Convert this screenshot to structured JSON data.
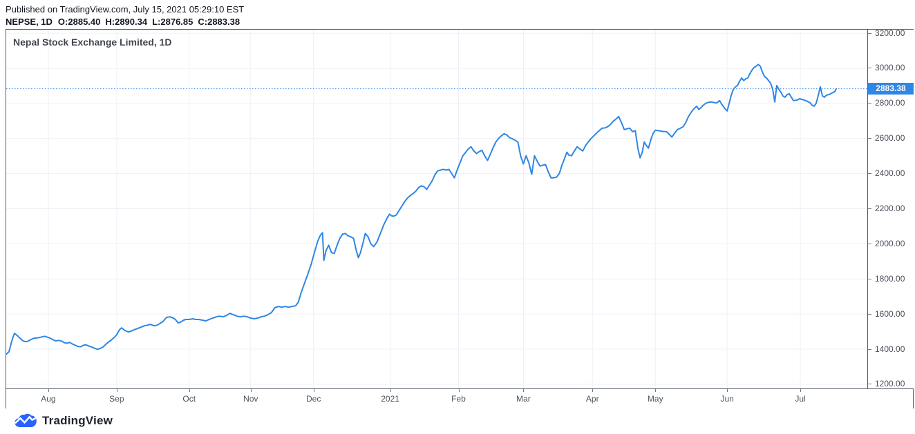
{
  "header": {
    "published_line": "Published on TradingView.com, July 15, 2021 05:29:10 EST",
    "symbol": "NEPSE, 1D",
    "ohlc": [
      {
        "label": "O:",
        "value": "2885.40"
      },
      {
        "label": "H:",
        "value": "2890.34"
      },
      {
        "label": "L:",
        "value": "2876.85"
      },
      {
        "label": "C:",
        "value": "2883.38"
      }
    ]
  },
  "chart": {
    "title": "Nepal Stock Exchange Limited, 1D",
    "last_price_label": "2883.38",
    "colors": {
      "line": "#2e86e5",
      "last_price_line": "#2e86e5",
      "badge_bg": "#2e86e5",
      "badge_text": "#ffffff",
      "grid": "#edf0f6",
      "border": "#555962",
      "axis_text": "#4a4e59",
      "logo_blue": "#2962ff"
    }
  },
  "chart_data": {
    "type": "line",
    "title": "Nepal Stock Exchange Limited, 1D",
    "symbol": "NEPSE",
    "timeframe": "1D",
    "legend_position": "none",
    "grid": true,
    "ylim": [
      1176,
      3220
    ],
    "last_price": 2883.38,
    "y_ticks": [
      {
        "label": "3200.00",
        "value": 3200
      },
      {
        "label": "3000.00",
        "value": 3000
      },
      {
        "label": "2800.00",
        "value": 2800
      },
      {
        "label": "2600.00",
        "value": 2600
      },
      {
        "label": "2400.00",
        "value": 2400
      },
      {
        "label": "2200.00",
        "value": 2200
      },
      {
        "label": "2000.00",
        "value": 2000
      },
      {
        "label": "1800.00",
        "value": 1800
      },
      {
        "label": "1600.00",
        "value": 1600
      },
      {
        "label": "1400.00",
        "value": 1400
      },
      {
        "label": "1200.00",
        "value": 1200
      }
    ],
    "x_ticks": [
      {
        "label": "Aug",
        "pos": 0.0489
      },
      {
        "label": "Sep",
        "pos": 0.1283
      },
      {
        "label": "Oct",
        "pos": 0.2125
      },
      {
        "label": "Nov",
        "pos": 0.2839
      },
      {
        "label": "Dec",
        "pos": 0.3569
      },
      {
        "label": "2021",
        "pos": 0.4459
      },
      {
        "label": "Feb",
        "pos": 0.5253
      },
      {
        "label": "Mar",
        "pos": 0.6007
      },
      {
        "label": "Apr",
        "pos": 0.6808
      },
      {
        "label": "May",
        "pos": 0.7538
      },
      {
        "label": "Jun",
        "pos": 0.8372
      },
      {
        "label": "Jul",
        "pos": 0.9222
      }
    ],
    "points": [
      [
        0.0,
        1371
      ],
      [
        0.0032,
        1385
      ],
      [
        0.0056,
        1431
      ],
      [
        0.008,
        1470
      ],
      [
        0.0096,
        1490
      ],
      [
        0.0128,
        1478
      ],
      [
        0.016,
        1462
      ],
      [
        0.0192,
        1448
      ],
      [
        0.0225,
        1442
      ],
      [
        0.0257,
        1446
      ],
      [
        0.0289,
        1455
      ],
      [
        0.0321,
        1462
      ],
      [
        0.0353,
        1464
      ],
      [
        0.0385,
        1466
      ],
      [
        0.0417,
        1470
      ],
      [
        0.0449,
        1473
      ],
      [
        0.0481,
        1468
      ],
      [
        0.0513,
        1462
      ],
      [
        0.0545,
        1453
      ],
      [
        0.0577,
        1447
      ],
      [
        0.0609,
        1450
      ],
      [
        0.0642,
        1446
      ],
      [
        0.0674,
        1437
      ],
      [
        0.0706,
        1434
      ],
      [
        0.0738,
        1438
      ],
      [
        0.077,
        1429
      ],
      [
        0.0802,
        1422
      ],
      [
        0.0834,
        1415
      ],
      [
        0.0866,
        1414
      ],
      [
        0.0898,
        1423
      ],
      [
        0.093,
        1424
      ],
      [
        0.0962,
        1417
      ],
      [
        0.0994,
        1412
      ],
      [
        0.1026,
        1405
      ],
      [
        0.1059,
        1399
      ],
      [
        0.1091,
        1404
      ],
      [
        0.1123,
        1412
      ],
      [
        0.1155,
        1426
      ],
      [
        0.1187,
        1440
      ],
      [
        0.1219,
        1452
      ],
      [
        0.1251,
        1465
      ],
      [
        0.1283,
        1482
      ],
      [
        0.1315,
        1510
      ],
      [
        0.1339,
        1521
      ],
      [
        0.1379,
        1506
      ],
      [
        0.1419,
        1498
      ],
      [
        0.1451,
        1503
      ],
      [
        0.1484,
        1510
      ],
      [
        0.1524,
        1517
      ],
      [
        0.1564,
        1525
      ],
      [
        0.1604,
        1533
      ],
      [
        0.1644,
        1537
      ],
      [
        0.1676,
        1541
      ],
      [
        0.1716,
        1533
      ],
      [
        0.1756,
        1537
      ],
      [
        0.178,
        1545
      ],
      [
        0.182,
        1557
      ],
      [
        0.1861,
        1581
      ],
      [
        0.1901,
        1584
      ],
      [
        0.1941,
        1577
      ],
      [
        0.1965,
        1569
      ],
      [
        0.1997,
        1549
      ],
      [
        0.2021,
        1553
      ],
      [
        0.2061,
        1565
      ],
      [
        0.2085,
        1569
      ],
      [
        0.2125,
        1569
      ],
      [
        0.2165,
        1573
      ],
      [
        0.2197,
        1569
      ],
      [
        0.2237,
        1569
      ],
      [
        0.2277,
        1565
      ],
      [
        0.2318,
        1561
      ],
      [
        0.2358,
        1569
      ],
      [
        0.2398,
        1577
      ],
      [
        0.2438,
        1584
      ],
      [
        0.2478,
        1588
      ],
      [
        0.2518,
        1584
      ],
      [
        0.2558,
        1592
      ],
      [
        0.2598,
        1604
      ],
      [
        0.2638,
        1596
      ],
      [
        0.2678,
        1588
      ],
      [
        0.2719,
        1584
      ],
      [
        0.2759,
        1588
      ],
      [
        0.2799,
        1584
      ],
      [
        0.2839,
        1577
      ],
      [
        0.2879,
        1573
      ],
      [
        0.2919,
        1577
      ],
      [
        0.2959,
        1584
      ],
      [
        0.2999,
        1588
      ],
      [
        0.3039,
        1596
      ],
      [
        0.3079,
        1608
      ],
      [
        0.312,
        1636
      ],
      [
        0.316,
        1643
      ],
      [
        0.32,
        1639
      ],
      [
        0.324,
        1643
      ],
      [
        0.328,
        1639
      ],
      [
        0.332,
        1643
      ],
      [
        0.336,
        1647
      ],
      [
        0.3392,
        1667
      ],
      [
        0.3424,
        1720
      ],
      [
        0.3464,
        1775
      ],
      [
        0.3505,
        1830
      ],
      [
        0.3545,
        1890
      ],
      [
        0.3585,
        1960
      ],
      [
        0.3617,
        2015
      ],
      [
        0.3649,
        2050
      ],
      [
        0.3673,
        2063
      ],
      [
        0.3689,
        1906
      ],
      [
        0.3713,
        1960
      ],
      [
        0.3745,
        1992
      ],
      [
        0.3777,
        1950
      ],
      [
        0.3809,
        1945
      ],
      [
        0.3841,
        1990
      ],
      [
        0.3873,
        2030
      ],
      [
        0.3906,
        2055
      ],
      [
        0.3938,
        2059
      ],
      [
        0.397,
        2045
      ],
      [
        0.4002,
        2040
      ],
      [
        0.4034,
        2031
      ],
      [
        0.4066,
        1960
      ],
      [
        0.409,
        1921
      ],
      [
        0.4114,
        1950
      ],
      [
        0.4146,
        2010
      ],
      [
        0.417,
        2059
      ],
      [
        0.4202,
        2040
      ],
      [
        0.4234,
        2000
      ],
      [
        0.4266,
        1984
      ],
      [
        0.4306,
        2010
      ],
      [
        0.4346,
        2060
      ],
      [
        0.4386,
        2110
      ],
      [
        0.4427,
        2150
      ],
      [
        0.4451,
        2169
      ],
      [
        0.4475,
        2160
      ],
      [
        0.4499,
        2157
      ],
      [
        0.4531,
        2165
      ],
      [
        0.4563,
        2190
      ],
      [
        0.4595,
        2215
      ],
      [
        0.4627,
        2240
      ],
      [
        0.4659,
        2260
      ],
      [
        0.4692,
        2275
      ],
      [
        0.4724,
        2286
      ],
      [
        0.4756,
        2300
      ],
      [
        0.4788,
        2320
      ],
      [
        0.482,
        2330
      ],
      [
        0.4852,
        2325
      ],
      [
        0.4884,
        2310
      ],
      [
        0.4916,
        2335
      ],
      [
        0.4948,
        2360
      ],
      [
        0.498,
        2395
      ],
      [
        0.5012,
        2416
      ],
      [
        0.5044,
        2420
      ],
      [
        0.5077,
        2424
      ],
      [
        0.5109,
        2420
      ],
      [
        0.5141,
        2424
      ],
      [
        0.5173,
        2400
      ],
      [
        0.5205,
        2376
      ],
      [
        0.5237,
        2420
      ],
      [
        0.5269,
        2460
      ],
      [
        0.5301,
        2500
      ],
      [
        0.5333,
        2520
      ],
      [
        0.5365,
        2540
      ],
      [
        0.5397,
        2553
      ],
      [
        0.5429,
        2530
      ],
      [
        0.5461,
        2514
      ],
      [
        0.5493,
        2525
      ],
      [
        0.5525,
        2533
      ],
      [
        0.5558,
        2500
      ],
      [
        0.559,
        2475
      ],
      [
        0.5622,
        2510
      ],
      [
        0.5654,
        2548
      ],
      [
        0.5686,
        2580
      ],
      [
        0.5718,
        2600
      ],
      [
        0.575,
        2615
      ],
      [
        0.5782,
        2627
      ],
      [
        0.5814,
        2620
      ],
      [
        0.5846,
        2605
      ],
      [
        0.5878,
        2598
      ],
      [
        0.591,
        2590
      ],
      [
        0.5942,
        2580
      ],
      [
        0.5974,
        2500
      ],
      [
        0.6006,
        2455
      ],
      [
        0.6038,
        2502
      ],
      [
        0.607,
        2460
      ],
      [
        0.6103,
        2396
      ],
      [
        0.6135,
        2502
      ],
      [
        0.6167,
        2470
      ],
      [
        0.6199,
        2443
      ],
      [
        0.6231,
        2448
      ],
      [
        0.6263,
        2451
      ],
      [
        0.6295,
        2410
      ],
      [
        0.6327,
        2376
      ],
      [
        0.6359,
        2376
      ],
      [
        0.6391,
        2380
      ],
      [
        0.6423,
        2400
      ],
      [
        0.6455,
        2450
      ],
      [
        0.6487,
        2490
      ],
      [
        0.6511,
        2522
      ],
      [
        0.6535,
        2505
      ],
      [
        0.6567,
        2502
      ],
      [
        0.6599,
        2530
      ],
      [
        0.6631,
        2553
      ],
      [
        0.6663,
        2540
      ],
      [
        0.6696,
        2529
      ],
      [
        0.6728,
        2560
      ],
      [
        0.676,
        2580
      ],
      [
        0.6792,
        2600
      ],
      [
        0.6824,
        2615
      ],
      [
        0.6856,
        2631
      ],
      [
        0.6888,
        2645
      ],
      [
        0.692,
        2659
      ],
      [
        0.6952,
        2660
      ],
      [
        0.6984,
        2667
      ],
      [
        0.7016,
        2680
      ],
      [
        0.7048,
        2698
      ],
      [
        0.708,
        2710
      ],
      [
        0.7112,
        2725
      ],
      [
        0.7145,
        2690
      ],
      [
        0.7177,
        2651
      ],
      [
        0.7209,
        2655
      ],
      [
        0.7241,
        2659
      ],
      [
        0.7273,
        2639
      ],
      [
        0.7305,
        2645
      ],
      [
        0.7337,
        2540
      ],
      [
        0.7361,
        2490
      ],
      [
        0.7385,
        2520
      ],
      [
        0.7409,
        2580
      ],
      [
        0.7433,
        2560
      ],
      [
        0.7458,
        2545
      ],
      [
        0.749,
        2600
      ],
      [
        0.7514,
        2630
      ],
      [
        0.7538,
        2647
      ],
      [
        0.757,
        2645
      ],
      [
        0.7602,
        2642
      ],
      [
        0.7634,
        2640
      ],
      [
        0.7666,
        2639
      ],
      [
        0.7698,
        2625
      ],
      [
        0.773,
        2608
      ],
      [
        0.7762,
        2630
      ],
      [
        0.7795,
        2651
      ],
      [
        0.7827,
        2658
      ],
      [
        0.7859,
        2666
      ],
      [
        0.7891,
        2690
      ],
      [
        0.7923,
        2725
      ],
      [
        0.7955,
        2750
      ],
      [
        0.7987,
        2770
      ],
      [
        0.8019,
        2784
      ],
      [
        0.8043,
        2765
      ],
      [
        0.8067,
        2775
      ],
      [
        0.8091,
        2788
      ],
      [
        0.8123,
        2800
      ],
      [
        0.8155,
        2806
      ],
      [
        0.8187,
        2808
      ],
      [
        0.822,
        2805
      ],
      [
        0.8252,
        2802
      ],
      [
        0.8284,
        2816
      ],
      [
        0.8316,
        2790
      ],
      [
        0.8348,
        2769
      ],
      [
        0.8372,
        2757
      ],
      [
        0.8396,
        2800
      ],
      [
        0.842,
        2847
      ],
      [
        0.8444,
        2880
      ],
      [
        0.8468,
        2894
      ],
      [
        0.8492,
        2902
      ],
      [
        0.8516,
        2925
      ],
      [
        0.854,
        2945
      ],
      [
        0.8564,
        2930
      ],
      [
        0.8588,
        2940
      ],
      [
        0.8612,
        2945
      ],
      [
        0.8637,
        2970
      ],
      [
        0.8661,
        2990
      ],
      [
        0.8685,
        3005
      ],
      [
        0.8709,
        3012
      ],
      [
        0.8733,
        3022
      ],
      [
        0.8757,
        3012
      ],
      [
        0.8781,
        2980
      ],
      [
        0.8805,
        2953
      ],
      [
        0.8829,
        2945
      ],
      [
        0.8853,
        2930
      ],
      [
        0.8877,
        2915
      ],
      [
        0.8901,
        2880
      ],
      [
        0.8925,
        2808
      ],
      [
        0.8949,
        2902
      ],
      [
        0.8973,
        2880
      ],
      [
        0.8997,
        2863
      ],
      [
        0.9021,
        2842
      ],
      [
        0.9045,
        2835
      ],
      [
        0.9069,
        2850
      ],
      [
        0.9093,
        2855
      ],
      [
        0.9117,
        2835
      ],
      [
        0.9142,
        2816
      ],
      [
        0.9166,
        2818
      ],
      [
        0.919,
        2820
      ],
      [
        0.9214,
        2827
      ],
      [
        0.9238,
        2823
      ],
      [
        0.9262,
        2820
      ],
      [
        0.9286,
        2816
      ],
      [
        0.931,
        2810
      ],
      [
        0.9334,
        2804
      ],
      [
        0.9358,
        2790
      ],
      [
        0.9382,
        2784
      ],
      [
        0.9406,
        2800
      ],
      [
        0.943,
        2845
      ],
      [
        0.9454,
        2894
      ],
      [
        0.9478,
        2843
      ],
      [
        0.9502,
        2835
      ],
      [
        0.9526,
        2847
      ],
      [
        0.9551,
        2850
      ],
      [
        0.9575,
        2855
      ],
      [
        0.9599,
        2862
      ],
      [
        0.9623,
        2867
      ],
      [
        0.9639,
        2883.38
      ]
    ]
  },
  "footer": {
    "brand": "TradingView"
  }
}
